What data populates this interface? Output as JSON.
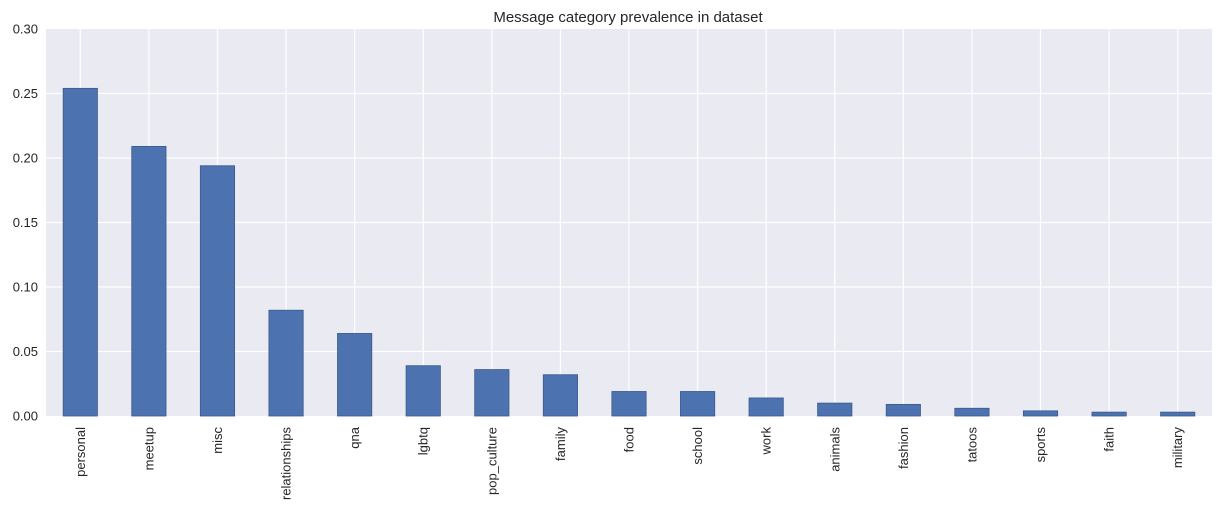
{
  "chart_data": {
    "type": "bar",
    "title": "Message category prevalence in dataset",
    "xlabel": "",
    "ylabel": "",
    "categories": [
      "personal",
      "meetup",
      "misc",
      "relationships",
      "qna",
      "lgbtq",
      "pop_culture",
      "family",
      "food",
      "school",
      "work",
      "animals",
      "fashion",
      "tatoos",
      "sports",
      "faith",
      "military"
    ],
    "values": [
      0.254,
      0.209,
      0.194,
      0.082,
      0.064,
      0.039,
      0.036,
      0.032,
      0.019,
      0.019,
      0.014,
      0.01,
      0.009,
      0.006,
      0.004,
      0.003,
      0.003
    ],
    "ylim": [
      0,
      0.3
    ],
    "yticks": [
      "0.00",
      "0.05",
      "0.10",
      "0.15",
      "0.20",
      "0.25",
      "0.30"
    ],
    "grid": true,
    "colors": {
      "bar": "#4C72B0",
      "bar_edge": "#3b5a8c",
      "plot_background": "#EAEAF2",
      "grid": "#ffffff"
    }
  }
}
